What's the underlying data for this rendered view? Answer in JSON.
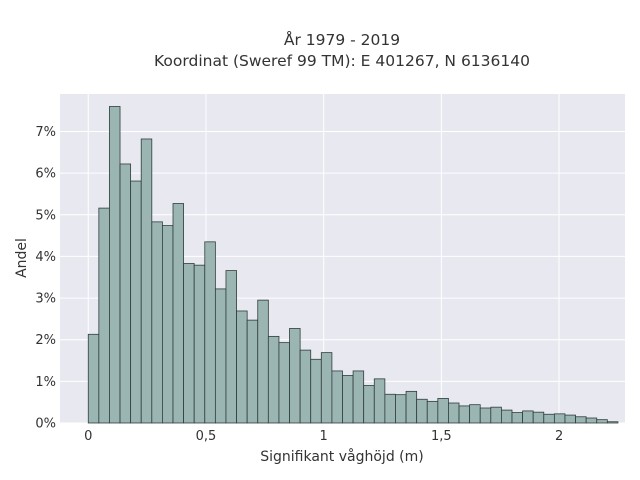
{
  "chart_data": {
    "type": "bar",
    "title": "År 1979 - 2019",
    "subtitle": "Koordinat (Sweref 99 TM): E 401267, N 6136140",
    "xlabel": "Signifikant våghöjd (m)",
    "ylabel": "Andel",
    "bin_width": 0.045,
    "bin_start": 0,
    "x_tick_values": [
      0,
      0.5,
      1,
      1.5,
      2
    ],
    "x_tick_labels": [
      "0",
      "0,5",
      "1",
      "1,5",
      "2"
    ],
    "y_tick_values": [
      0,
      1,
      2,
      3,
      4,
      5,
      6,
      7
    ],
    "y_tick_labels": [
      "0%",
      "1%",
      "2%",
      "3%",
      "4%",
      "5%",
      "6%",
      "7%"
    ],
    "xlim": [
      -0.12,
      2.28
    ],
    "ylim": [
      0,
      7.9
    ],
    "grid": true,
    "values": [
      2.13,
      5.16,
      7.6,
      6.22,
      5.81,
      6.82,
      4.83,
      4.74,
      5.27,
      3.83,
      3.79,
      4.35,
      3.22,
      3.66,
      2.69,
      2.47,
      2.95,
      2.08,
      1.93,
      2.27,
      1.75,
      1.53,
      1.69,
      1.25,
      1.14,
      1.25,
      0.9,
      1.06,
      0.69,
      0.68,
      0.76,
      0.57,
      0.52,
      0.59,
      0.48,
      0.41,
      0.44,
      0.36,
      0.38,
      0.31,
      0.25,
      0.29,
      0.26,
      0.21,
      0.22,
      0.19,
      0.15,
      0.12,
      0.08,
      0.03
    ],
    "colors": {
      "bar_fill": "#9bb5b3",
      "bar_edge": "#2f3d3c",
      "plot_bg": "#e8e8f1"
    }
  }
}
